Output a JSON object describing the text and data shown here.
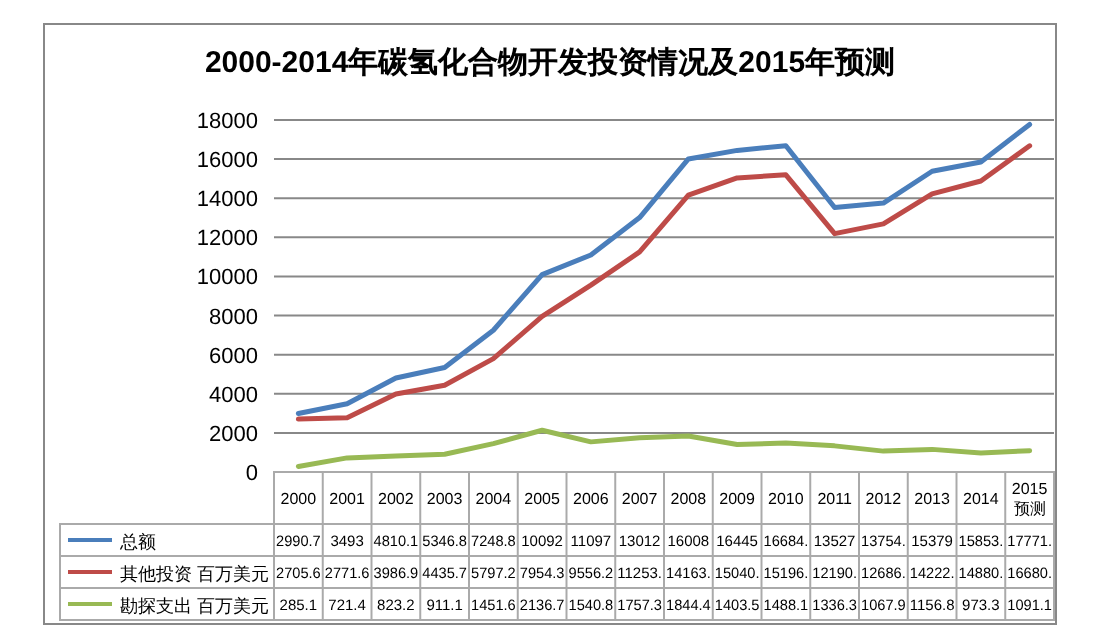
{
  "chart_data": {
    "type": "line",
    "title": "2000-2014年碳氢化合物开发投资情况及2015年预测",
    "categories": [
      "2000",
      "2001",
      "2002",
      "2003",
      "2004",
      "2005",
      "2006",
      "2007",
      "2008",
      "2009",
      "2010",
      "2011",
      "2012",
      "2013",
      "2014",
      "2015\n预测"
    ],
    "series": [
      {
        "name": "总额",
        "color": "#4a7ebb",
        "values": [
          2990.7,
          3493,
          4810.1,
          5346.8,
          7248.8,
          10092,
          11097,
          13012,
          16008,
          16445,
          16684,
          13527,
          13754,
          15379,
          15853,
          17771
        ],
        "value_labels": [
          "2990.7",
          "3493",
          "4810.1",
          "5346.8",
          "7248.8",
          "10092",
          "11097",
          "13012",
          "16008",
          "16445",
          "16684.",
          "13527",
          "13754.",
          "15379",
          "15853.",
          "17771."
        ]
      },
      {
        "name": "其他投资  百万美元",
        "color": "#be4b48",
        "values": [
          2705.6,
          2771.6,
          3986.9,
          4435.7,
          5797.2,
          7954.3,
          9556.2,
          11253,
          14163,
          15040,
          15196,
          12190,
          12686,
          14222,
          14880,
          16680
        ],
        "value_labels": [
          "2705.6",
          "2771.6",
          "3986.9",
          "4435.7",
          "5797.2",
          "7954.3",
          "9556.2",
          "11253.",
          "14163.",
          "15040.",
          "15196.",
          "12190.",
          "12686.",
          "14222.",
          "14880.",
          "16680."
        ]
      },
      {
        "name": "勘探支出  百万美元",
        "color": "#98b954",
        "values": [
          285.1,
          721.4,
          823.2,
          911.1,
          1451.6,
          2136.7,
          1540.8,
          1757.3,
          1844.4,
          1403.5,
          1488.1,
          1336.3,
          1067.9,
          1156.8,
          973.3,
          1091.1
        ],
        "value_labels": [
          "285.1",
          "721.4",
          "823.2",
          "911.1",
          "1451.6",
          "2136.7",
          "1540.8",
          "1757.3",
          "1844.4",
          "1403.5",
          "1488.1",
          "1336.3",
          "1067.9",
          "1156.8",
          "973.3",
          "1091.1"
        ]
      }
    ],
    "ylim": [
      0,
      18000
    ],
    "yticks": [
      0,
      2000,
      4000,
      6000,
      8000,
      10000,
      12000,
      14000,
      16000,
      18000
    ],
    "grid": "y",
    "legend": "bottom",
    "marker": "none",
    "line_style": "solid"
  }
}
